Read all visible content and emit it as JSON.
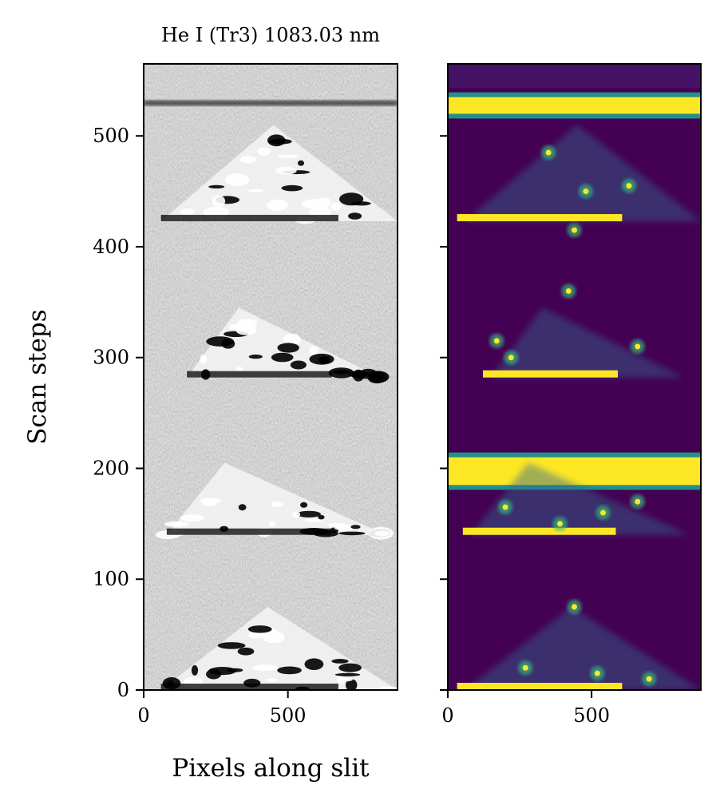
{
  "chart_data": [
    {
      "type": "heatmap",
      "panel": "left",
      "colormap": "gray",
      "title": "He I (Tr3) 1083.03 nm",
      "xlabel": "Pixels along slit",
      "ylabel": "Scan steps",
      "xlim": [
        0,
        880
      ],
      "ylim": [
        0,
        565
      ],
      "xticks": [
        0,
        500
      ],
      "xtick_labels": [
        "0",
        "500"
      ],
      "yticks": [
        0,
        100,
        200,
        300,
        400,
        500
      ],
      "ytick_labels": [
        "0",
        "100",
        "200",
        "300",
        "400",
        "500"
      ],
      "grid": false,
      "segment_boundaries": [
        0,
        140,
        282,
        423,
        565
      ],
      "dark_band_row": 530,
      "structures": [
        {
          "segment": 1,
          "shape": "triangle",
          "base_y": 423,
          "apex_x": 450,
          "apex_y": 510,
          "x_range": [
            60,
            880
          ]
        },
        {
          "segment": 2,
          "shape": "triangle",
          "base_y": 282,
          "apex_x": 330,
          "apex_y": 345,
          "x_range": [
            150,
            820
          ]
        },
        {
          "segment": 3,
          "shape": "triangle",
          "base_y": 140,
          "apex_x": 280,
          "apex_y": 205,
          "x_range": [
            80,
            840
          ]
        },
        {
          "segment": 4,
          "shape": "triangle",
          "base_y": 0,
          "apex_x": 430,
          "apex_y": 75,
          "x_range": [
            60,
            880
          ]
        }
      ]
    },
    {
      "type": "heatmap",
      "panel": "right",
      "colormap": "viridis",
      "xlim": [
        0,
        880
      ],
      "ylim": [
        0,
        565
      ],
      "xticks": [
        0,
        500
      ],
      "xtick_labels": [
        "0",
        "500"
      ],
      "yticks": [
        0,
        100,
        200,
        300,
        400,
        500
      ],
      "ytick_labels_shown": false,
      "grid": false,
      "segment_boundaries": [
        0,
        140,
        282,
        423,
        565
      ],
      "bright_bands": [
        [
          520,
          535
        ],
        [
          185,
          210
        ]
      ],
      "bright_spots": [
        {
          "x": 440,
          "y": 415
        },
        {
          "x": 350,
          "y": 485
        },
        {
          "x": 630,
          "y": 455
        },
        {
          "x": 480,
          "y": 450
        },
        {
          "x": 420,
          "y": 360
        },
        {
          "x": 170,
          "y": 315
        },
        {
          "x": 660,
          "y": 310
        },
        {
          "x": 220,
          "y": 300
        },
        {
          "x": 200,
          "y": 165
        },
        {
          "x": 540,
          "y": 160
        },
        {
          "x": 390,
          "y": 150
        },
        {
          "x": 660,
          "y": 170
        },
        {
          "x": 440,
          "y": 75
        },
        {
          "x": 270,
          "y": 20
        },
        {
          "x": 520,
          "y": 15
        },
        {
          "x": 700,
          "y": 10
        }
      ]
    }
  ]
}
